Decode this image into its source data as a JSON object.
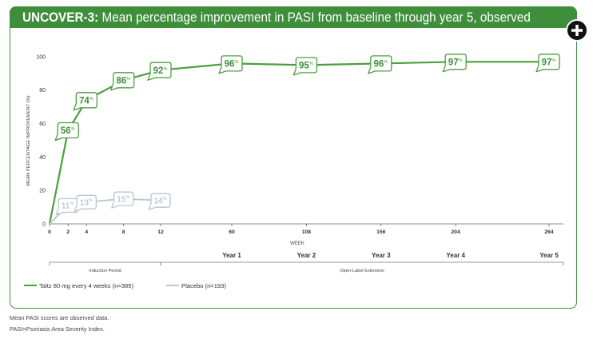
{
  "colors": {
    "brand_green": "#3f8e3b",
    "axis": "#666666"
  },
  "controls": {
    "expand_icon": "plus-icon"
  },
  "chart_data": {
    "type": "line",
    "title_prefix": "UNCOVER-3:",
    "title": "Mean percentage improvement in PASI from baseline through year 5, observed",
    "xlabel": "WEEK",
    "ylabel": "MEAN PERCENTAGE IMPROVEMENT (%)",
    "ylim": [
      0,
      100
    ],
    "yticks": [
      0,
      20,
      40,
      60,
      80,
      100
    ],
    "xlim": [
      0,
      264
    ],
    "xticks": [
      0,
      2,
      4,
      8,
      12,
      60,
      108,
      156,
      204,
      264
    ],
    "year_labels": [
      {
        "week": 60,
        "label": "Year 1"
      },
      {
        "week": 108,
        "label": "Year 2"
      },
      {
        "week": 156,
        "label": "Year 3"
      },
      {
        "week": 204,
        "label": "Year 4"
      },
      {
        "week": 264,
        "label": "Year 5"
      }
    ],
    "periods": [
      {
        "label": "Induction Period",
        "from_week": 0,
        "to_week": 12
      },
      {
        "label": "Open-Label Extension",
        "from_week": 12,
        "to_week": 264
      }
    ],
    "data_label_suffix": "%",
    "series": [
      {
        "name": "Taltz 80 mg every 4 weeks (n=385)",
        "color": "#4c9f3f",
        "label_color": "#3f8e3b",
        "x": [
          0,
          2,
          4,
          8,
          12,
          60,
          108,
          156,
          204,
          264
        ],
        "values": [
          0,
          56,
          74,
          86,
          92,
          96,
          95,
          96,
          97,
          97
        ]
      },
      {
        "name": "Placebo (n=193)",
        "color": "#b8c7d1",
        "label_color": "#a4b5c0",
        "x": [
          0,
          2,
          4,
          8,
          12
        ],
        "values": [
          0,
          11,
          13,
          15,
          14
        ]
      }
    ],
    "legend": "bottom-left",
    "grid": false
  },
  "footnotes": [
    "Mean PASI scores are observed data.",
    "PASI=Psoriasis Area Severity Index."
  ]
}
